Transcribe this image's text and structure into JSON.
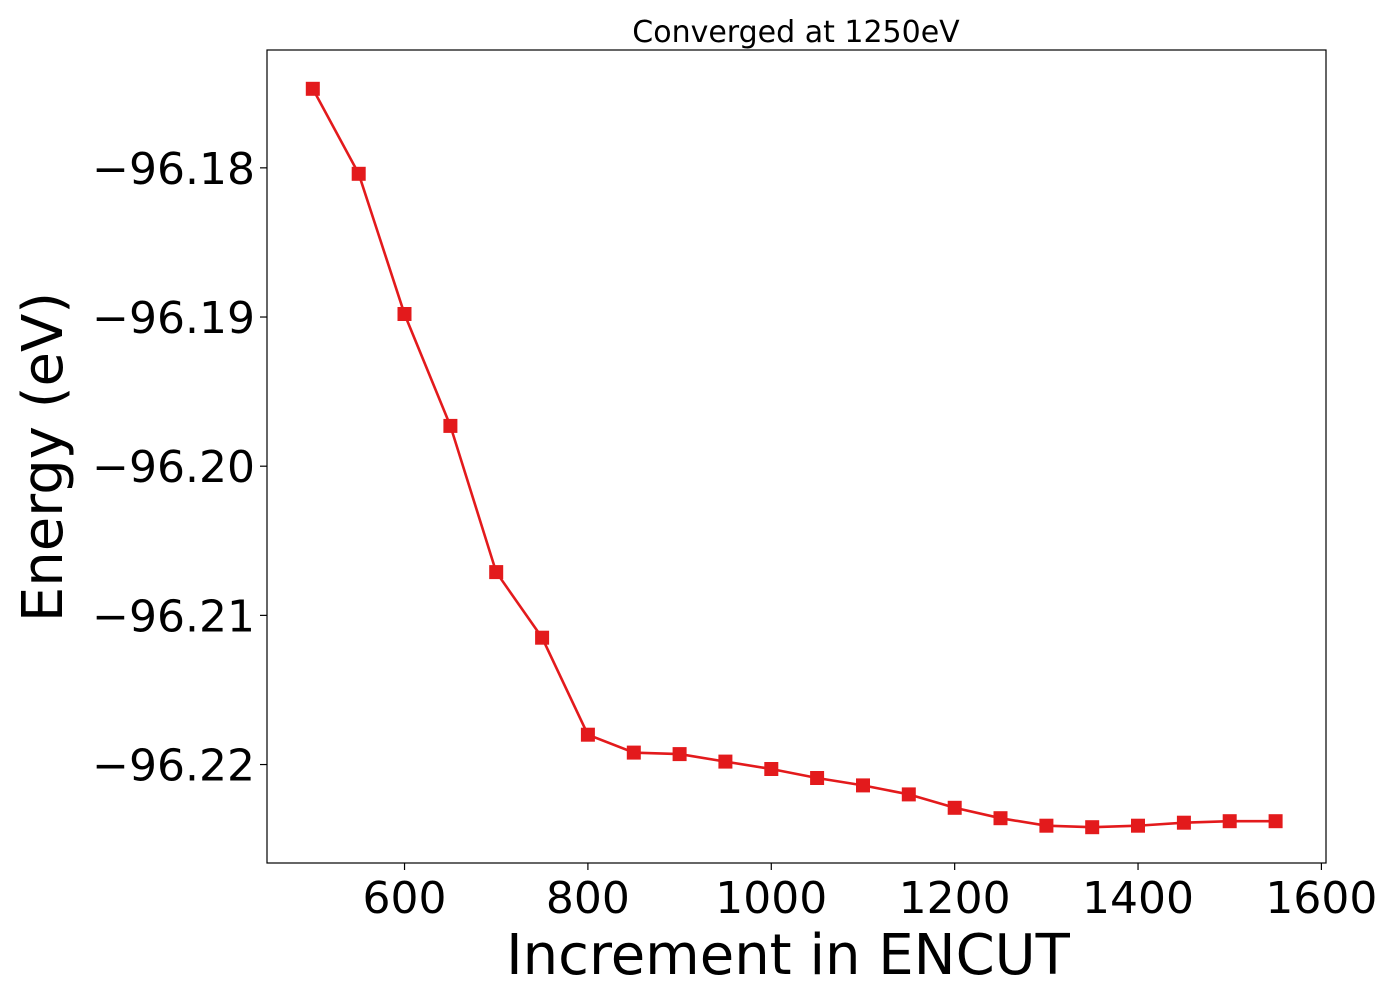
{
  "chart_data": {
    "type": "line",
    "title": "Converged at 1250eV",
    "xlabel": "Increment in ENCUT",
    "ylabel": "Energy (eV)",
    "xlim": [
      450,
      1605
    ],
    "ylim": [
      -96.2266,
      -96.1721
    ],
    "xticks": [
      600,
      800,
      1000,
      1200,
      1400,
      1600
    ],
    "xtick_labels": [
      "600",
      "800",
      "1000",
      "1200",
      "1400",
      "1600"
    ],
    "yticks": [
      -96.18,
      -96.19,
      -96.2,
      -96.21,
      -96.22
    ],
    "ytick_labels": [
      "−96.18",
      "−96.19",
      "−96.20",
      "−96.21",
      "−96.22"
    ],
    "grid": false,
    "series": [
      {
        "color": "#e31a1c",
        "marker": "square",
        "x": [
          500,
          550,
          600,
          650,
          700,
          750,
          800,
          850,
          900,
          950,
          1000,
          1050,
          1100,
          1150,
          1200,
          1250,
          1300,
          1350,
          1400,
          1450,
          1500,
          1550
        ],
        "y": [
          -96.1747,
          -96.1804,
          -96.1898,
          -96.1973,
          -96.2071,
          -96.2115,
          -96.218,
          -96.2192,
          -96.2193,
          -96.2198,
          -96.2203,
          -96.2209,
          -96.2214,
          -96.222,
          -96.2229,
          -96.2236,
          -96.2241,
          -96.2242,
          -96.2241,
          -96.2239,
          -96.2238,
          -96.2238
        ]
      }
    ]
  }
}
